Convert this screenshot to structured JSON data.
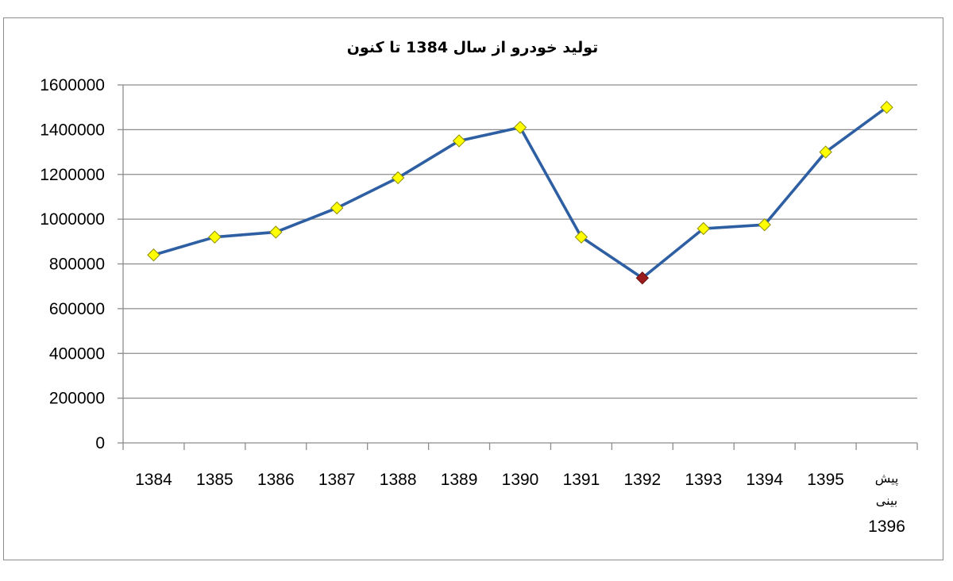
{
  "colors": {
    "line": "#2e5fa3",
    "marker": "#ffff00",
    "marker_stroke": "#8c8c00",
    "highlight_marker": "#9b1c1c",
    "gridline": "#8c8c8c",
    "axis": "#8c8c8c",
    "frame": "#8c8c8c"
  },
  "chart_data": {
    "type": "line",
    "title": "تولید خودرو از سال 1384 تا کنون",
    "xlabel": "",
    "ylabel": "",
    "categories": [
      "1384",
      "1385",
      "1386",
      "1387",
      "1388",
      "1389",
      "1390",
      "1391",
      "1392",
      "1393",
      "1394",
      "1395",
      "پیش بینی 1396"
    ],
    "category_lines": [
      [
        "1384"
      ],
      [
        "1385"
      ],
      [
        "1386"
      ],
      [
        "1387"
      ],
      [
        "1388"
      ],
      [
        "1389"
      ],
      [
        "1390"
      ],
      [
        "1391"
      ],
      [
        "1392"
      ],
      [
        "1393"
      ],
      [
        "1394"
      ],
      [
        "1395"
      ],
      [
        "پیش",
        "بینی",
        "1396"
      ]
    ],
    "series": [
      {
        "values": [
          840000,
          920000,
          942000,
          1050000,
          1185000,
          1350000,
          1410000,
          920000,
          737000,
          958000,
          975000,
          1300000,
          1500000
        ],
        "highlight_index": 8
      }
    ],
    "ylim": [
      0,
      1600000
    ],
    "yticks": [
      0,
      200000,
      400000,
      600000,
      800000,
      1000000,
      1200000,
      1400000,
      1600000
    ],
    "ytick_labels": [
      "0",
      "200000",
      "400000",
      "600000",
      "800000",
      "1000000",
      "1200000",
      "1400000",
      "1600000"
    ],
    "grid": true,
    "legend": "none",
    "marker": "diamond"
  }
}
